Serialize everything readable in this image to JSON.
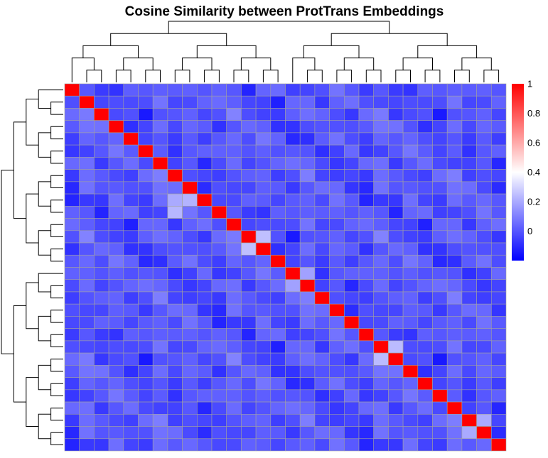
{
  "chart_data": {
    "type": "heatmap",
    "title": "Cosine Similarity between ProtTrans Embeddings",
    "n": 30,
    "diagonal_value": 1,
    "off_diagonal_pattern": [
      "0.02,0.05,0.1,-0.05,0.12,0.08,-0.02,0.15,0.03,-0.1,0.06,0.01,0.09,-0.03,0.11,0.04,-0.07,0.13,0.02,0.07",
      "-0.04,0.14,0.0,0.1,0.05,-0.08,0.12,0.06,0.03,-0.02,0.09,0.16,-0.06,0.04,0.1,0.07,-0.01,0.08,0.13,-0.05"
    ],
    "near_diagonal_highlights": [
      {
        "row": 9,
        "col": 7,
        "value": 0.2
      },
      {
        "row": 9,
        "col": 8,
        "value": 0.22
      },
      {
        "row": 10,
        "col": 7,
        "value": 0.23
      },
      {
        "row": 12,
        "col": 13,
        "value": 0.25
      },
      {
        "row": 13,
        "col": 12,
        "value": 0.25
      },
      {
        "row": 15,
        "col": 16,
        "value": 0.18
      },
      {
        "row": 16,
        "col": 15,
        "value": 0.18
      },
      {
        "row": 21,
        "col": 22,
        "value": 0.24
      },
      {
        "row": 22,
        "col": 21,
        "value": 0.24
      },
      {
        "row": 27,
        "col": 28,
        "value": 0.2
      },
      {
        "row": 28,
        "col": 27,
        "value": 0.2
      }
    ],
    "color_scale": {
      "min": -0.2,
      "max": 1,
      "low_color": "#0000ff",
      "mid_color": "#ffffff",
      "high_color": "#ff0000",
      "mid_value": 0.4,
      "ticks": [
        "1",
        "0.8",
        "0.6",
        "0.4",
        "0.2",
        "0"
      ]
    },
    "dendrogram": {
      "top": true,
      "left": true
    },
    "grid_line_color": "#a0a0a0"
  }
}
